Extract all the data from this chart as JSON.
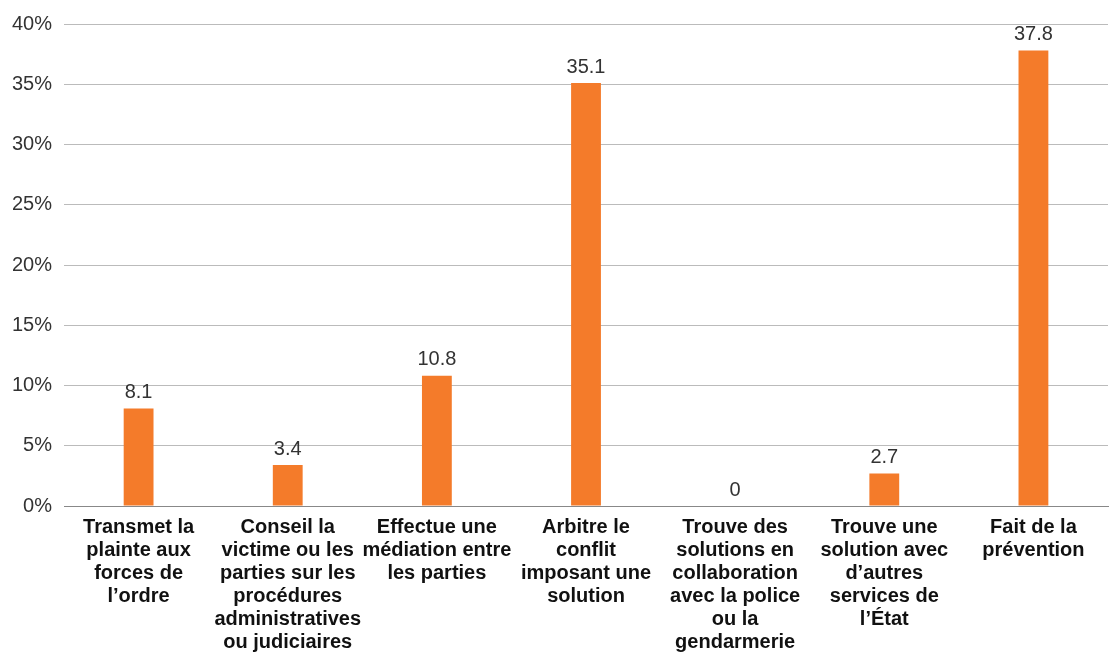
{
  "chart_data": {
    "type": "bar",
    "categories": [
      "Transmet la plainte aux forces de l’ordre",
      "Conseil la victime ou les parties sur les procédures administratives ou judiciaires",
      "Effectue une médiation entre les parties",
      "Arbitre le conflit imposant une solution",
      "Trouve des solutions en collaboration avec la police ou la gendarmerie",
      "Trouve une solution avec d’autres services de l’État",
      "Fait de la prévention"
    ],
    "values": [
      8.1,
      3.4,
      10.8,
      35.1,
      0,
      2.7,
      37.8
    ],
    "color": "#f47b2a",
    "ylim": [
      0,
      40
    ],
    "yticks": [
      {
        "value": 0,
        "label": "0%"
      },
      {
        "value": 5,
        "label": "5%"
      },
      {
        "value": 10,
        "label": "10%"
      },
      {
        "value": 15,
        "label": "15%"
      },
      {
        "value": 20,
        "label": "20%"
      },
      {
        "value": 25,
        "label": "25%"
      },
      {
        "value": 30,
        "label": "30%"
      },
      {
        "value": 35,
        "label": "35%"
      },
      {
        "value": 40,
        "label": "40%"
      }
    ],
    "grid": "y",
    "data_labels": true,
    "legend": false
  }
}
